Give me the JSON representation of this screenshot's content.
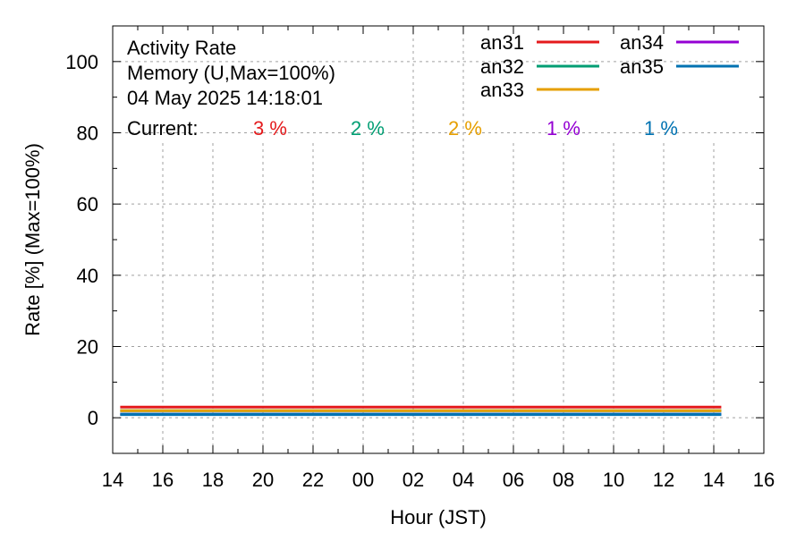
{
  "chart_data": {
    "type": "line",
    "title_lines": [
      "Activity Rate",
      "Memory (U,Max=100%)",
      "04 May 2025 14:18:01"
    ],
    "current_label": "Current:",
    "xlabel": "Hour (JST)",
    "ylabel": "Rate [%]  (Max=100%)",
    "x_tick_labels": [
      "14",
      "16",
      "18",
      "20",
      "22",
      "00",
      "02",
      "04",
      "06",
      "08",
      "10",
      "12",
      "14",
      "16"
    ],
    "xlim_hours": [
      0,
      26
    ],
    "ylim": [
      -10,
      110
    ],
    "y_ticks": [
      0,
      20,
      40,
      60,
      80,
      100
    ],
    "grid": true,
    "legend_position": "top-right",
    "data_span_hours": [
      0.3,
      24.3
    ],
    "series": [
      {
        "name": "an31",
        "color": "#e41a1c",
        "current": "3 %",
        "value": 3
      },
      {
        "name": "an32",
        "color": "#009e73",
        "current": "2 %",
        "value": 2
      },
      {
        "name": "an33",
        "color": "#e69f00",
        "current": "2 %",
        "value": 2
      },
      {
        "name": "an34",
        "color": "#9400d3",
        "current": "1 %",
        "value": 1
      },
      {
        "name": "an35",
        "color": "#0072b2",
        "current": "1 %",
        "value": 1
      }
    ]
  }
}
